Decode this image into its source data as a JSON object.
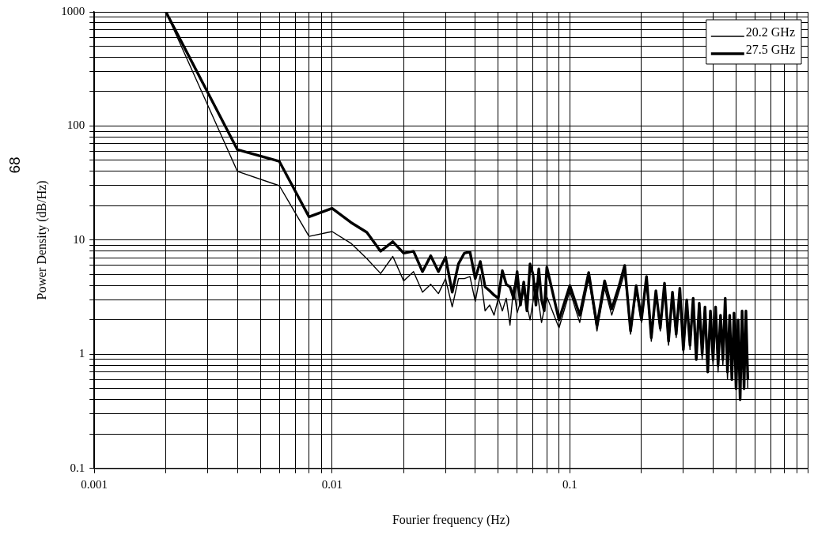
{
  "chart_data": {
    "type": "line",
    "xlabel": "Fourier frequency (Hz)",
    "ylabel": "Power Density (dB/Hz)",
    "annotations": [
      "68"
    ],
    "log": "xy",
    "grid": true,
    "legend": "top right",
    "marker": "none",
    "line_style": "solid",
    "xlim": [
      0.001,
      1
    ],
    "ylim": [
      0.1,
      1000
    ],
    "xticks": [
      0.001,
      {
        "value": 0.002,
        "label": null
      },
      {
        "value": 0.003,
        "label": null
      },
      {
        "value": 0.004,
        "label": null
      },
      {
        "value": 0.005,
        "label": null
      },
      {
        "value": 0.006,
        "label": null
      },
      {
        "value": 0.007,
        "label": null
      },
      {
        "value": 0.008,
        "label": null
      },
      {
        "value": 0.009,
        "label": null
      },
      0.01,
      {
        "value": 0.02,
        "label": null
      },
      {
        "value": 0.03,
        "label": null
      },
      {
        "value": 0.04,
        "label": null
      },
      {
        "value": 0.05,
        "label": null
      },
      {
        "value": 0.06,
        "label": null
      },
      {
        "value": 0.07,
        "label": null
      },
      {
        "value": 0.08,
        "label": null
      },
      {
        "value": 0.09,
        "label": null
      },
      0.1,
      {
        "value": 0.2,
        "label": null
      },
      {
        "value": 0.3,
        "label": null
      },
      {
        "value": 0.4,
        "label": null
      },
      {
        "value": 0.5,
        "label": null
      },
      {
        "value": 0.6,
        "label": null
      },
      {
        "value": 0.7,
        "label": null
      },
      {
        "value": 0.8,
        "label": null
      },
      {
        "value": 0.9,
        "label": null
      },
      {
        "value": 1,
        "label": null
      }
    ],
    "yticks": [
      0.1,
      {
        "value": 0.2,
        "label": null
      },
      {
        "value": 0.3,
        "label": null
      },
      {
        "value": 0.4,
        "label": null
      },
      {
        "value": 0.5,
        "label": null
      },
      {
        "value": 0.6,
        "label": null
      },
      {
        "value": 0.7,
        "label": null
      },
      {
        "value": 0.8,
        "label": null
      },
      {
        "value": 0.9,
        "label": null
      },
      1,
      {
        "value": 2,
        "label": null
      },
      {
        "value": 3,
        "label": null
      },
      {
        "value": 4,
        "label": null
      },
      {
        "value": 5,
        "label": null
      },
      {
        "value": 6,
        "label": null
      },
      {
        "value": 7,
        "label": null
      },
      {
        "value": 8,
        "label": null
      },
      {
        "value": 9,
        "label": null
      },
      10,
      {
        "value": 20,
        "label": null
      },
      {
        "value": 30,
        "label": null
      },
      {
        "value": 40,
        "label": null
      },
      {
        "value": 50,
        "label": null
      },
      {
        "value": 60,
        "label": null
      },
      {
        "value": 70,
        "label": null
      },
      {
        "value": 80,
        "label": null
      },
      {
        "value": 90,
        "label": null
      },
      100,
      {
        "value": 200,
        "label": null
      },
      {
        "value": 300,
        "label": null
      },
      {
        "value": 400,
        "label": null
      },
      {
        "value": 500,
        "label": null
      },
      {
        "value": 600,
        "label": null
      },
      {
        "value": 700,
        "label": null
      },
      {
        "value": 800,
        "label": null
      },
      {
        "value": 900,
        "label": null
      },
      1000
    ],
    "series": [
      {
        "name": "20.2 GHz",
        "color": "#000000",
        "x": [
          0.002,
          0.004,
          0.006,
          0.008,
          0.01,
          0.012,
          0.014,
          0.016,
          0.018,
          0.02,
          0.022,
          0.024,
          0.026,
          0.028,
          0.03,
          0.032,
          0.034,
          0.036,
          0.038,
          0.04,
          0.042,
          0.044,
          0.046,
          0.048,
          0.05,
          0.052,
          0.054,
          0.056,
          0.058,
          0.06,
          0.064,
          0.068,
          0.072,
          0.076,
          0.08,
          0.09,
          0.1,
          0.11,
          0.12,
          0.13,
          0.14,
          0.15,
          0.16,
          0.17,
          0.18,
          0.19,
          0.2,
          0.21,
          0.22,
          0.23,
          0.24,
          0.25,
          0.26,
          0.27,
          0.28,
          0.29,
          0.3,
          0.31,
          0.32,
          0.33,
          0.34,
          0.35,
          0.36,
          0.37,
          0.38,
          0.39,
          0.4,
          0.41,
          0.42,
          0.43,
          0.44,
          0.45,
          0.46,
          0.47,
          0.48,
          0.49,
          0.5,
          0.51,
          0.52,
          0.53,
          0.54,
          0.55,
          0.56
        ],
        "values": [
          1000,
          40,
          30,
          10.8,
          11.9,
          9.4,
          6.9,
          5.1,
          7.2,
          4.4,
          5.3,
          3.5,
          4.1,
          3.4,
          4.6,
          2.6,
          4.6,
          4.6,
          4.8,
          2.9,
          5.0,
          2.4,
          2.7,
          2.2,
          3.1,
          2.4,
          3.1,
          1.8,
          3.9,
          2.3,
          3.6,
          2.0,
          4.2,
          1.9,
          3.2,
          1.7,
          3.6,
          1.9,
          4.6,
          1.6,
          3.8,
          2.2,
          3.4,
          5.2,
          1.5,
          3.6,
          1.9,
          4.4,
          1.3,
          3.3,
          1.6,
          3.9,
          1.2,
          3.2,
          1.4,
          3.5,
          1.0,
          2.8,
          1.1,
          2.9,
          0.9,
          2.6,
          0.9,
          2.4,
          0.7,
          2.2,
          0.8,
          2.4,
          0.7,
          2.0,
          0.8,
          2.8,
          0.6,
          2.0,
          0.6,
          2.1,
          0.5,
          1.8,
          0.4,
          2.2,
          0.5,
          2.2,
          0.5
        ]
      },
      {
        "name": "27.5 GHz",
        "color": "#000000",
        "x": [
          0.002,
          0.004,
          0.006,
          0.008,
          0.01,
          0.012,
          0.014,
          0.016,
          0.018,
          0.02,
          0.022,
          0.024,
          0.026,
          0.028,
          0.03,
          0.032,
          0.034,
          0.036,
          0.038,
          0.04,
          0.042,
          0.044,
          0.046,
          0.048,
          0.05,
          0.052,
          0.054,
          0.056,
          0.058,
          0.06,
          0.062,
          0.064,
          0.066,
          0.068,
          0.07,
          0.072,
          0.074,
          0.076,
          0.078,
          0.08,
          0.09,
          0.1,
          0.11,
          0.12,
          0.13,
          0.14,
          0.15,
          0.16,
          0.17,
          0.18,
          0.19,
          0.2,
          0.21,
          0.22,
          0.23,
          0.24,
          0.25,
          0.26,
          0.27,
          0.28,
          0.29,
          0.3,
          0.31,
          0.32,
          0.33,
          0.34,
          0.35,
          0.36,
          0.37,
          0.38,
          0.39,
          0.4,
          0.41,
          0.42,
          0.43,
          0.44,
          0.45,
          0.46,
          0.47,
          0.48,
          0.49,
          0.5,
          0.51,
          0.52,
          0.53,
          0.54,
          0.55,
          0.56
        ],
        "values": [
          1000,
          62,
          49,
          16,
          19,
          14.3,
          11.7,
          8.0,
          9.7,
          7.7,
          8.0,
          5.3,
          7.3,
          5.3,
          7.1,
          3.5,
          6.2,
          7.7,
          7.9,
          4.6,
          6.5,
          3.9,
          3.6,
          3.3,
          3.1,
          5.4,
          4.1,
          3.9,
          3.1,
          5.3,
          2.7,
          4.3,
          2.4,
          6.2,
          5.0,
          2.7,
          5.6,
          3.0,
          2.4,
          5.8,
          2.0,
          4.0,
          2.2,
          5.2,
          1.8,
          4.4,
          2.5,
          3.8,
          6.0,
          1.6,
          4.0,
          2.0,
          4.8,
          1.4,
          3.6,
          1.7,
          4.2,
          1.3,
          3.5,
          1.5,
          3.8,
          1.1,
          3.0,
          1.2,
          3.1,
          0.9,
          2.8,
          1.0,
          2.6,
          0.7,
          2.4,
          0.9,
          2.6,
          0.8,
          2.2,
          0.9,
          3.1,
          0.7,
          2.2,
          0.6,
          2.3,
          0.5,
          2.0,
          0.4,
          2.4,
          0.5,
          2.4,
          0.6
        ]
      }
    ]
  }
}
